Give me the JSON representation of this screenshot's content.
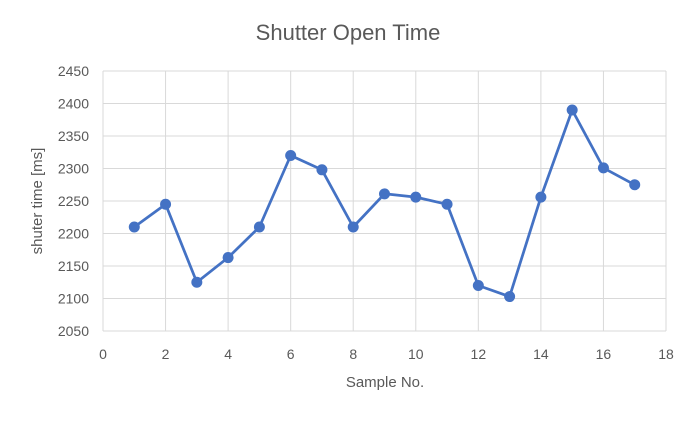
{
  "chart_data": {
    "type": "scatter",
    "title": "Shutter Open Time",
    "xlabel": "Sample No.",
    "ylabel": "shuter time [ms]",
    "xlim": [
      0,
      18
    ],
    "ylim": [
      2050,
      2450
    ],
    "xticks": [
      0,
      2,
      4,
      6,
      8,
      10,
      12,
      14,
      16,
      18
    ],
    "yticks": [
      2050,
      2100,
      2150,
      2200,
      2250,
      2300,
      2350,
      2400,
      2450
    ],
    "grid": true,
    "legend": "none",
    "series": [
      {
        "color": "#4472C4",
        "x": [
          1,
          2,
          3,
          4,
          5,
          6,
          7,
          8,
          9,
          10,
          11,
          12,
          13,
          14,
          15,
          16,
          17
        ],
        "y": [
          2210,
          2245,
          2125,
          2163,
          2210,
          2320,
          2298,
          2210,
          2261,
          2256,
          2245,
          2120,
          2103,
          2256,
          2390,
          2301,
          2275
        ]
      }
    ]
  }
}
